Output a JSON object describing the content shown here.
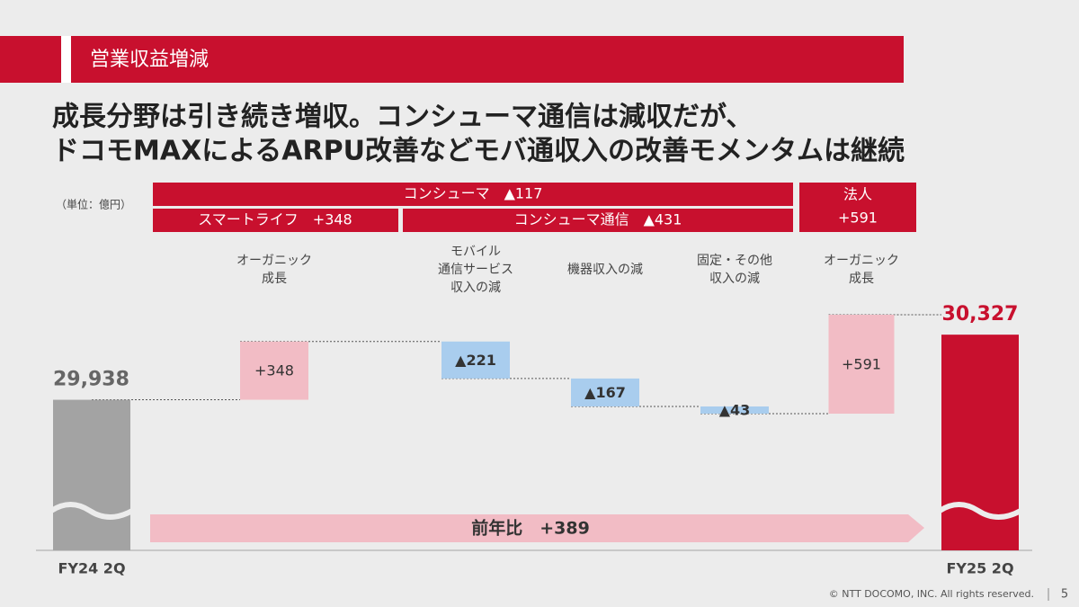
{
  "header": {
    "title": "営業収益増減"
  },
  "headline": [
    "成長分野は引き続き増収。コンシューマ通信は減収だが、",
    "ドコモMAXによるARPU改善などモバ通収入の改善モメンタムは継続"
  ],
  "unit": "（単位：億円）",
  "groups": {
    "consumer": "コンシューマ　▲117",
    "smart_life": "スマートライフ　+348",
    "consumer_comm": "コンシューマ通信　▲431",
    "enterprise": [
      "法人",
      "+591"
    ]
  },
  "chart_data": {
    "type": "waterfall",
    "categories": [
      [
        "FY24 2Q"
      ],
      [
        "オーガニック",
        "成長"
      ],
      [
        "モバイル",
        "通信サービス",
        "収入の減"
      ],
      [
        "機器収入の減"
      ],
      [
        "固定・その他",
        "収入の減"
      ],
      [
        "オーガニック",
        "成長"
      ],
      [
        "FY25 2Q"
      ]
    ],
    "values": [
      29938,
      348,
      -221,
      -167,
      -43,
      591,
      30327
    ],
    "value_labels": [
      "29,938",
      "+348",
      "▲221",
      "▲167",
      "▲43",
      "+591",
      "30,327"
    ],
    "totals": [
      0,
      6
    ],
    "colors": {
      "start": "#a3a3a3",
      "end": "#c8102e",
      "increase": "#f2bcc5",
      "decrease": "#a9cdee"
    },
    "yoy": "前年比　+389"
  },
  "footer": {
    "copyright": "© NTT DOCOMO, INC.  All rights reserved.",
    "page": "5"
  }
}
